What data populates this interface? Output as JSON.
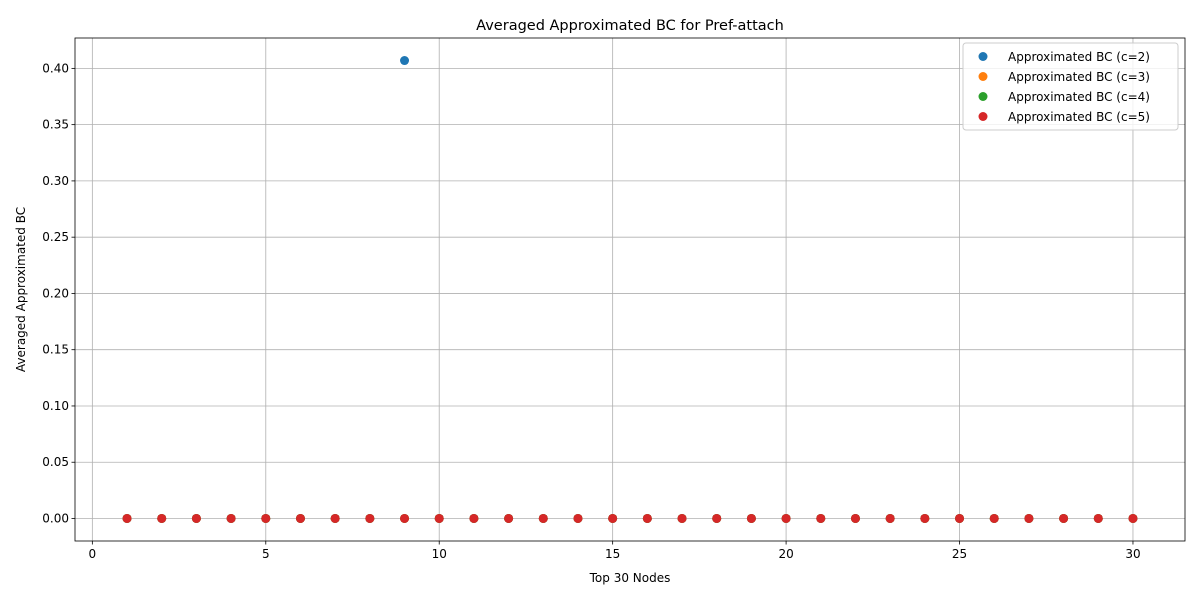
{
  "chart_data": {
    "type": "scatter",
    "title": "Averaged Approximated BC for Pref-attach",
    "xlabel": "Top 30 Nodes",
    "ylabel": "Averaged Approximated BC",
    "xlim": [
      -0.5,
      31.5
    ],
    "ylim": [
      -0.02,
      0.427
    ],
    "xticks": [
      0,
      5,
      10,
      15,
      20,
      25,
      30
    ],
    "yticks": [
      0.0,
      0.05,
      0.1,
      0.15,
      0.2,
      0.25,
      0.3,
      0.35,
      0.4
    ],
    "ytick_labels": [
      "0.00",
      "0.05",
      "0.10",
      "0.15",
      "0.20",
      "0.25",
      "0.30",
      "0.35",
      "0.40"
    ],
    "grid": true,
    "legend_position": "top-right",
    "x": [
      1,
      2,
      3,
      4,
      5,
      6,
      7,
      8,
      9,
      10,
      11,
      12,
      13,
      14,
      15,
      16,
      17,
      18,
      19,
      20,
      21,
      22,
      23,
      24,
      25,
      26,
      27,
      28,
      29,
      30
    ],
    "series": [
      {
        "name": "Approximated BC (c=2)",
        "color": "#1f77b4",
        "values": [
          0,
          0,
          0,
          0,
          0,
          0,
          0,
          0,
          0.407,
          0,
          0,
          0,
          0,
          0,
          0,
          0,
          0,
          0,
          0,
          0,
          0,
          0,
          0,
          0,
          0,
          0,
          0,
          0,
          0,
          0
        ]
      },
      {
        "name": "Approximated BC (c=3)",
        "color": "#ff7f0e",
        "values": [
          0,
          0,
          0,
          0,
          0,
          0,
          0,
          0,
          0,
          0,
          0,
          0,
          0,
          0,
          0,
          0,
          0,
          0,
          0,
          0,
          0,
          0,
          0,
          0,
          0,
          0,
          0,
          0,
          0,
          0
        ]
      },
      {
        "name": "Approximated BC (c=4)",
        "color": "#2ca02c",
        "values": [
          0,
          0,
          0,
          0,
          0,
          0,
          0,
          0,
          0,
          0,
          0,
          0,
          0,
          0,
          0,
          0,
          0,
          0,
          0,
          0,
          0,
          0,
          0,
          0,
          0,
          0,
          0,
          0,
          0,
          0
        ]
      },
      {
        "name": "Approximated BC (c=5)",
        "color": "#d62728",
        "values": [
          0,
          0,
          0,
          0,
          0,
          0,
          0,
          0,
          0,
          0,
          0,
          0,
          0,
          0,
          0,
          0,
          0,
          0,
          0,
          0,
          0,
          0,
          0,
          0,
          0,
          0,
          0,
          0,
          0,
          0
        ]
      }
    ]
  }
}
